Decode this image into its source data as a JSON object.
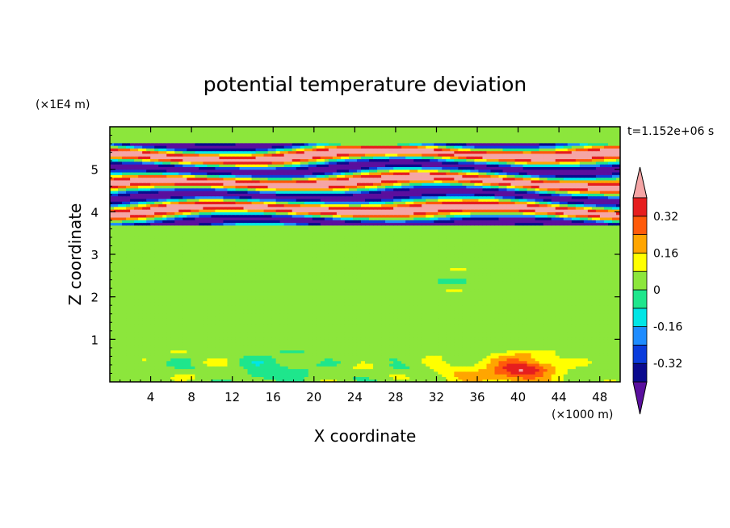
{
  "chart_data": {
    "type": "heatmap",
    "title": "potential temperature deviation",
    "xlabel": "X coordinate",
    "ylabel": "Z coordinate",
    "x_unit_label": "(×1000 m)",
    "y_unit_label": "(×1E4 m)",
    "time_label": "t=1.152e+06 s",
    "xlim": [
      0,
      50
    ],
    "ylim": [
      0,
      6
    ],
    "x_ticks": [
      4,
      8,
      12,
      16,
      20,
      24,
      28,
      32,
      36,
      40,
      44,
      48
    ],
    "y_ticks": [
      1,
      2,
      3,
      4,
      5
    ],
    "colorbar": {
      "levels": [
        -0.4,
        -0.32,
        -0.24,
        -0.16,
        -0.08,
        0,
        0.08,
        0.16,
        0.24,
        0.32,
        0.4
      ],
      "tick_labels": [
        "-0.32",
        "-0.16",
        "0",
        "0.16",
        "0.32"
      ],
      "tick_values": [
        -0.32,
        -0.16,
        0,
        0.16,
        0.32
      ],
      "colors": [
        "#5a0f9e",
        "#0a0a8e",
        "#0a3cdc",
        "#1e8cff",
        "#00e6e6",
        "#1ee68c",
        "#8ce63c",
        "#ffff00",
        "#ffa500",
        "#ff5a0a",
        "#e61e1e",
        "#f5a5a5"
      ],
      "extend": "both"
    },
    "field_summary": {
      "z_0_to_3.7": "mostly 0 to 0.08 with small patches of -0.08; warm anomaly up to 0.32 near x=40, z=0.3",
      "z_3.7_to_5.6": "strong alternating layers of about +0.4 and -0.4",
      "z_5.6_to_6": "mostly 0 to 0.08"
    }
  }
}
